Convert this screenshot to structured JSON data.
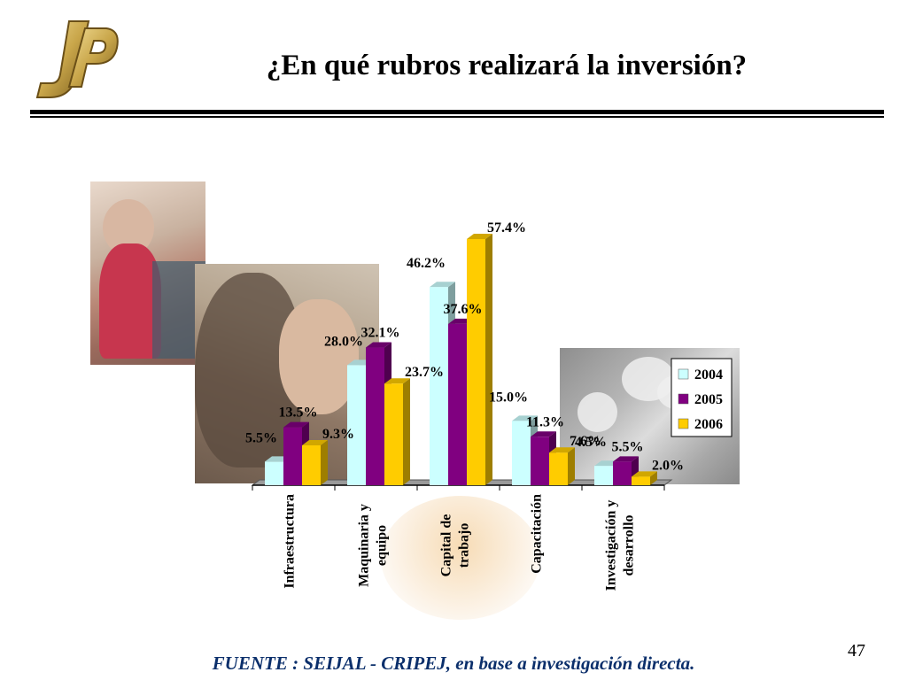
{
  "slide": {
    "title": "¿En qué rubros realizará la inversión?",
    "source": "FUENTE :  SEIJAL - CRIPEJ,  en base a investigación directa.",
    "page_number": "47"
  },
  "colors": {
    "series_2004": "#ccffff",
    "series_2005": "#800080",
    "series_2006": "#ffcc00",
    "logo_gold": "#c9a64a",
    "source_text": "#0b2f6b"
  },
  "chart_data": {
    "type": "bar",
    "style": "3d-clustered-column",
    "categories": [
      [
        "Infraestructura"
      ],
      [
        "Maquinaria y",
        "equipo"
      ],
      [
        "Capital de",
        "trabajo"
      ],
      [
        "Capacitación"
      ],
      [
        "Investigación y",
        "desarrollo"
      ]
    ],
    "series": [
      {
        "name": "2004",
        "values": [
          5.5,
          28.0,
          46.2,
          15.0,
          4.5
        ],
        "labels": [
          "5.5%",
          "28.0%",
          "46.2%",
          "15.0%",
          "4.5%"
        ]
      },
      {
        "name": "2005",
        "values": [
          13.5,
          32.1,
          37.6,
          11.3,
          5.5
        ],
        "labels": [
          "13.5%",
          "32.1%",
          "37.6%",
          "11.3%",
          "5.5%"
        ]
      },
      {
        "name": "2006",
        "values": [
          9.3,
          23.7,
          57.4,
          7.6,
          2.0
        ],
        "labels": [
          "9.3%",
          "23.7%",
          "57.4%",
          "7.6%",
          "2.0%"
        ]
      }
    ],
    "legend_position": "right",
    "unit": "%",
    "grid": false,
    "ylim": [
      0,
      60
    ]
  }
}
